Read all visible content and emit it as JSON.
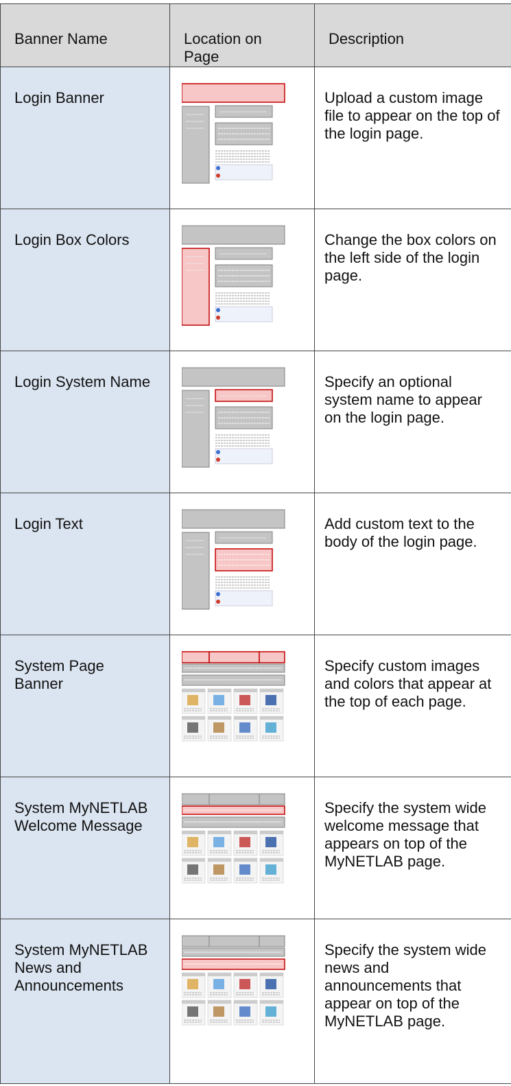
{
  "header": {
    "columns": [
      "Banner Name",
      "Location on Page",
      "Description"
    ]
  },
  "rows": [
    {
      "name": "Login Banner",
      "description": "Upload a custom image file to appear on the top of the login page."
    },
    {
      "name": "Login Box Colors",
      "description": "Change the box colors on the left side of the login page."
    },
    {
      "name": "Login System Name",
      "description": "Specify an optional system name to appear on the login page."
    },
    {
      "name": "Login Text",
      "description": "Add custom text to the body of the login page."
    },
    {
      "name": "System Page Banner",
      "description": "Specify custom images and colors that appear at the top of each page."
    },
    {
      "name": "System MyNETLAB Welcome Message",
      "description": "Specify the system wide welcome message that appears on top of the MyNETLAB page."
    },
    {
      "name": "System MyNETLAB News and Announcements",
      "description": "Specify the system wide news and announcements that appear on top of the MyNETLAB page."
    }
  ]
}
